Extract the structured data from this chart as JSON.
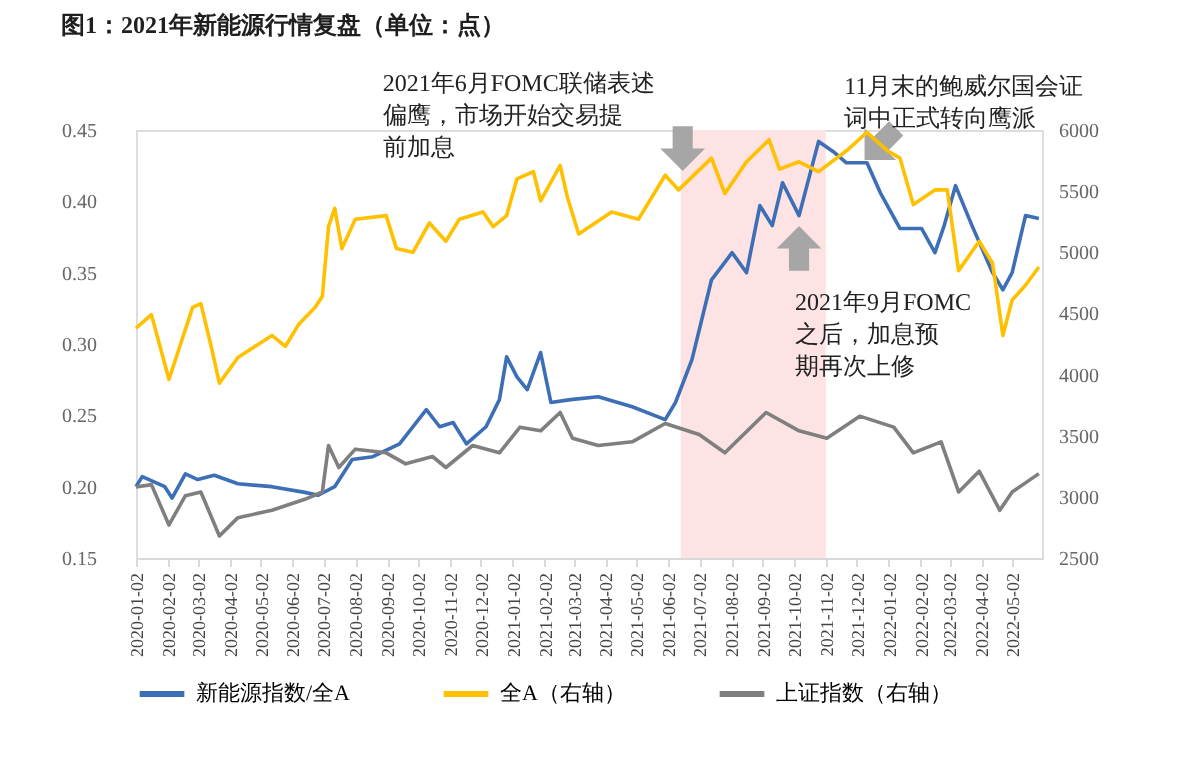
{
  "chart_data": {
    "type": "line",
    "title": "图1：2021年新能源行情复盘（单位：点）",
    "xlim": [
      "2020-01-02",
      "2022-05-31"
    ],
    "xticks": [
      "2020-01-02",
      "2020-02-02",
      "2020-03-02",
      "2020-04-02",
      "2020-05-02",
      "2020-06-02",
      "2020-07-02",
      "2020-08-02",
      "2020-09-02",
      "2020-10-02",
      "2020-11-02",
      "2020-12-02",
      "2021-01-02",
      "2021-02-02",
      "2021-03-02",
      "2021-04-02",
      "2021-05-02",
      "2021-06-02",
      "2021-07-02",
      "2021-08-02",
      "2021-09-02",
      "2021-10-02",
      "2021-11-02",
      "2021-12-02",
      "2022-01-02",
      "2022-02-02",
      "2022-03-02",
      "2022-04-02",
      "2022-05-02"
    ],
    "ylim": [
      0.15,
      0.45
    ],
    "yticks": [
      {
        "value": 0.15,
        "label": "0.15"
      },
      {
        "value": 0.2,
        "label": "0.20"
      },
      {
        "value": 0.25,
        "label": "0.25"
      },
      {
        "value": 0.3,
        "label": "0.30"
      },
      {
        "value": 0.35,
        "label": "0.35"
      },
      {
        "value": 0.4,
        "label": "0.40"
      },
      {
        "value": 0.45,
        "label": "0.45"
      }
    ],
    "y2lim": [
      2500,
      6000
    ],
    "y2ticks": [
      2500,
      3000,
      3500,
      4000,
      4500,
      5000,
      5500,
      6000
    ],
    "grid": false,
    "legend": "bottom",
    "bands": [
      {
        "axis": "x",
        "from": "2021-06-14",
        "to": "2021-11-02",
        "color": "#fde3e3"
      }
    ],
    "annotations": [
      {
        "text": "2021年6月FOMC联储表述偏鹰，市场开始交易提前加息",
        "x": "2021-06-16",
        "y": 0.437
      },
      {
        "text": "11月末的鲍威尔国会证词中正式转向鹰派",
        "x": "2021-12-25",
        "y": 0.44
      },
      {
        "text": "2021年9月FOMC之后，加息预期再次上修",
        "x": "2021-10-07",
        "y": 0.367
      }
    ],
    "series": [
      {
        "name": "新能源指数/全A",
        "color": "#3d6fb6",
        "x": [
          "2020-01-02",
          "2020-01-08",
          "2020-01-30",
          "2020-02-06",
          "2020-02-19",
          "2020-03-02",
          "2020-03-18",
          "2020-04-10",
          "2020-05-13",
          "2020-06-14",
          "2020-06-27",
          "2020-07-13",
          "2020-07-30",
          "2020-08-19",
          "2020-09-14",
          "2020-10-10",
          "2020-10-23",
          "2020-11-05",
          "2020-11-18",
          "2020-12-07",
          "2020-12-20",
          "2020-12-27",
          "2021-01-06",
          "2021-01-16",
          "2021-01-29",
          "2021-02-08",
          "2021-02-27",
          "2021-03-26",
          "2021-04-28",
          "2021-05-30",
          "2021-06-09",
          "2021-06-25",
          "2021-07-14",
          "2021-08-03",
          "2021-08-17",
          "2021-08-30",
          "2021-09-11",
          "2021-09-21",
          "2021-10-07",
          "2021-10-26",
          "2021-11-09",
          "2021-11-22",
          "2021-12-12",
          "2021-12-25",
          "2022-01-13",
          "2022-02-03",
          "2022-02-16",
          "2022-02-25",
          "2022-03-08",
          "2022-03-24",
          "2022-04-13",
          "2022-04-23",
          "2022-05-02",
          "2022-05-15",
          "2022-05-28"
        ],
        "values": [
          0.2,
          0.207,
          0.2,
          0.192,
          0.209,
          0.205,
          0.208,
          0.202,
          0.2,
          0.196,
          0.194,
          0.2,
          0.219,
          0.221,
          0.23,
          0.254,
          0.242,
          0.245,
          0.23,
          0.242,
          0.261,
          0.291,
          0.277,
          0.268,
          0.294,
          0.259,
          0.261,
          0.263,
          0.256,
          0.247,
          0.259,
          0.289,
          0.345,
          0.364,
          0.35,
          0.397,
          0.383,
          0.413,
          0.39,
          0.442,
          0.435,
          0.427,
          0.427,
          0.406,
          0.381,
          0.381,
          0.364,
          0.383,
          0.411,
          0.383,
          0.35,
          0.338,
          0.35,
          0.39,
          0.388
        ]
      },
      {
        "name": "全A（右轴）",
        "color": "#ffc000",
        "axis": "y2",
        "x": [
          "2020-01-02",
          "2020-01-17",
          "2020-02-03",
          "2020-02-26",
          "2020-03-05",
          "2020-03-15",
          "2020-03-23",
          "2020-04-10",
          "2020-05-13",
          "2020-05-26",
          "2020-06-08",
          "2020-06-24",
          "2020-07-01",
          "2020-07-07",
          "2020-07-13",
          "2020-07-20",
          "2020-08-02",
          "2020-09-01",
          "2020-09-11",
          "2020-09-27",
          "2020-10-13",
          "2020-10-29",
          "2020-11-11",
          "2020-12-04",
          "2020-12-14",
          "2020-12-27",
          "2021-01-06",
          "2021-01-22",
          "2021-01-29",
          "2021-02-17",
          "2021-02-24",
          "2021-03-07",
          "2021-04-08",
          "2021-05-04",
          "2021-05-30",
          "2021-06-12",
          "2021-07-14",
          "2021-07-27",
          "2021-08-17",
          "2021-09-08",
          "2021-09-18",
          "2021-10-07",
          "2021-10-26",
          "2021-11-22",
          "2021-12-12",
          "2022-01-01",
          "2022-01-13",
          "2022-01-26",
          "2022-02-16",
          "2022-02-28",
          "2022-03-11",
          "2022-03-31",
          "2022-04-13",
          "2022-04-23",
          "2022-05-02",
          "2022-05-15",
          "2022-05-28"
        ],
        "values": [
          4380,
          4490,
          3960,
          4550,
          4580,
          4230,
          3930,
          4140,
          4320,
          4230,
          4410,
          4550,
          4640,
          5210,
          5360,
          5030,
          5270,
          5300,
          5030,
          5000,
          5240,
          5090,
          5270,
          5330,
          5210,
          5300,
          5600,
          5660,
          5420,
          5710,
          5450,
          5150,
          5330,
          5270,
          5630,
          5510,
          5770,
          5480,
          5740,
          5920,
          5680,
          5740,
          5660,
          5830,
          5980,
          5830,
          5770,
          5390,
          5510,
          5510,
          4850,
          5090,
          4910,
          4320,
          4610,
          4730,
          4880
        ]
      },
      {
        "name": "上证指数（右轴）",
        "color": "#7f7f7f",
        "axis": "y2",
        "x": [
          "2020-01-02",
          "2020-01-17",
          "2020-02-03",
          "2020-02-19",
          "2020-03-05",
          "2020-03-23",
          "2020-04-10",
          "2020-05-13",
          "2020-06-14",
          "2020-07-01",
          "2020-07-07",
          "2020-07-17",
          "2020-08-02",
          "2020-09-01",
          "2020-09-20",
          "2020-10-16",
          "2020-10-29",
          "2020-11-24",
          "2020-12-20",
          "2021-01-09",
          "2021-01-29",
          "2021-02-17",
          "2021-03-01",
          "2021-03-26",
          "2021-04-28",
          "2021-05-30",
          "2021-07-02",
          "2021-07-27",
          "2021-09-05",
          "2021-10-07",
          "2021-11-03",
          "2021-12-05",
          "2022-01-07",
          "2022-01-26",
          "2022-02-22",
          "2022-03-11",
          "2022-03-31",
          "2022-04-20",
          "2022-05-02",
          "2022-05-28"
        ],
        "values": [
          3080,
          3100,
          2770,
          3010,
          3040,
          2680,
          2830,
          2890,
          2980,
          3040,
          3420,
          3240,
          3390,
          3360,
          3270,
          3330,
          3240,
          3420,
          3360,
          3570,
          3540,
          3690,
          3480,
          3420,
          3450,
          3600,
          3510,
          3360,
          3690,
          3540,
          3480,
          3660,
          3570,
          3360,
          3450,
          3040,
          3210,
          2890,
          3040,
          3190
        ]
      }
    ]
  }
}
